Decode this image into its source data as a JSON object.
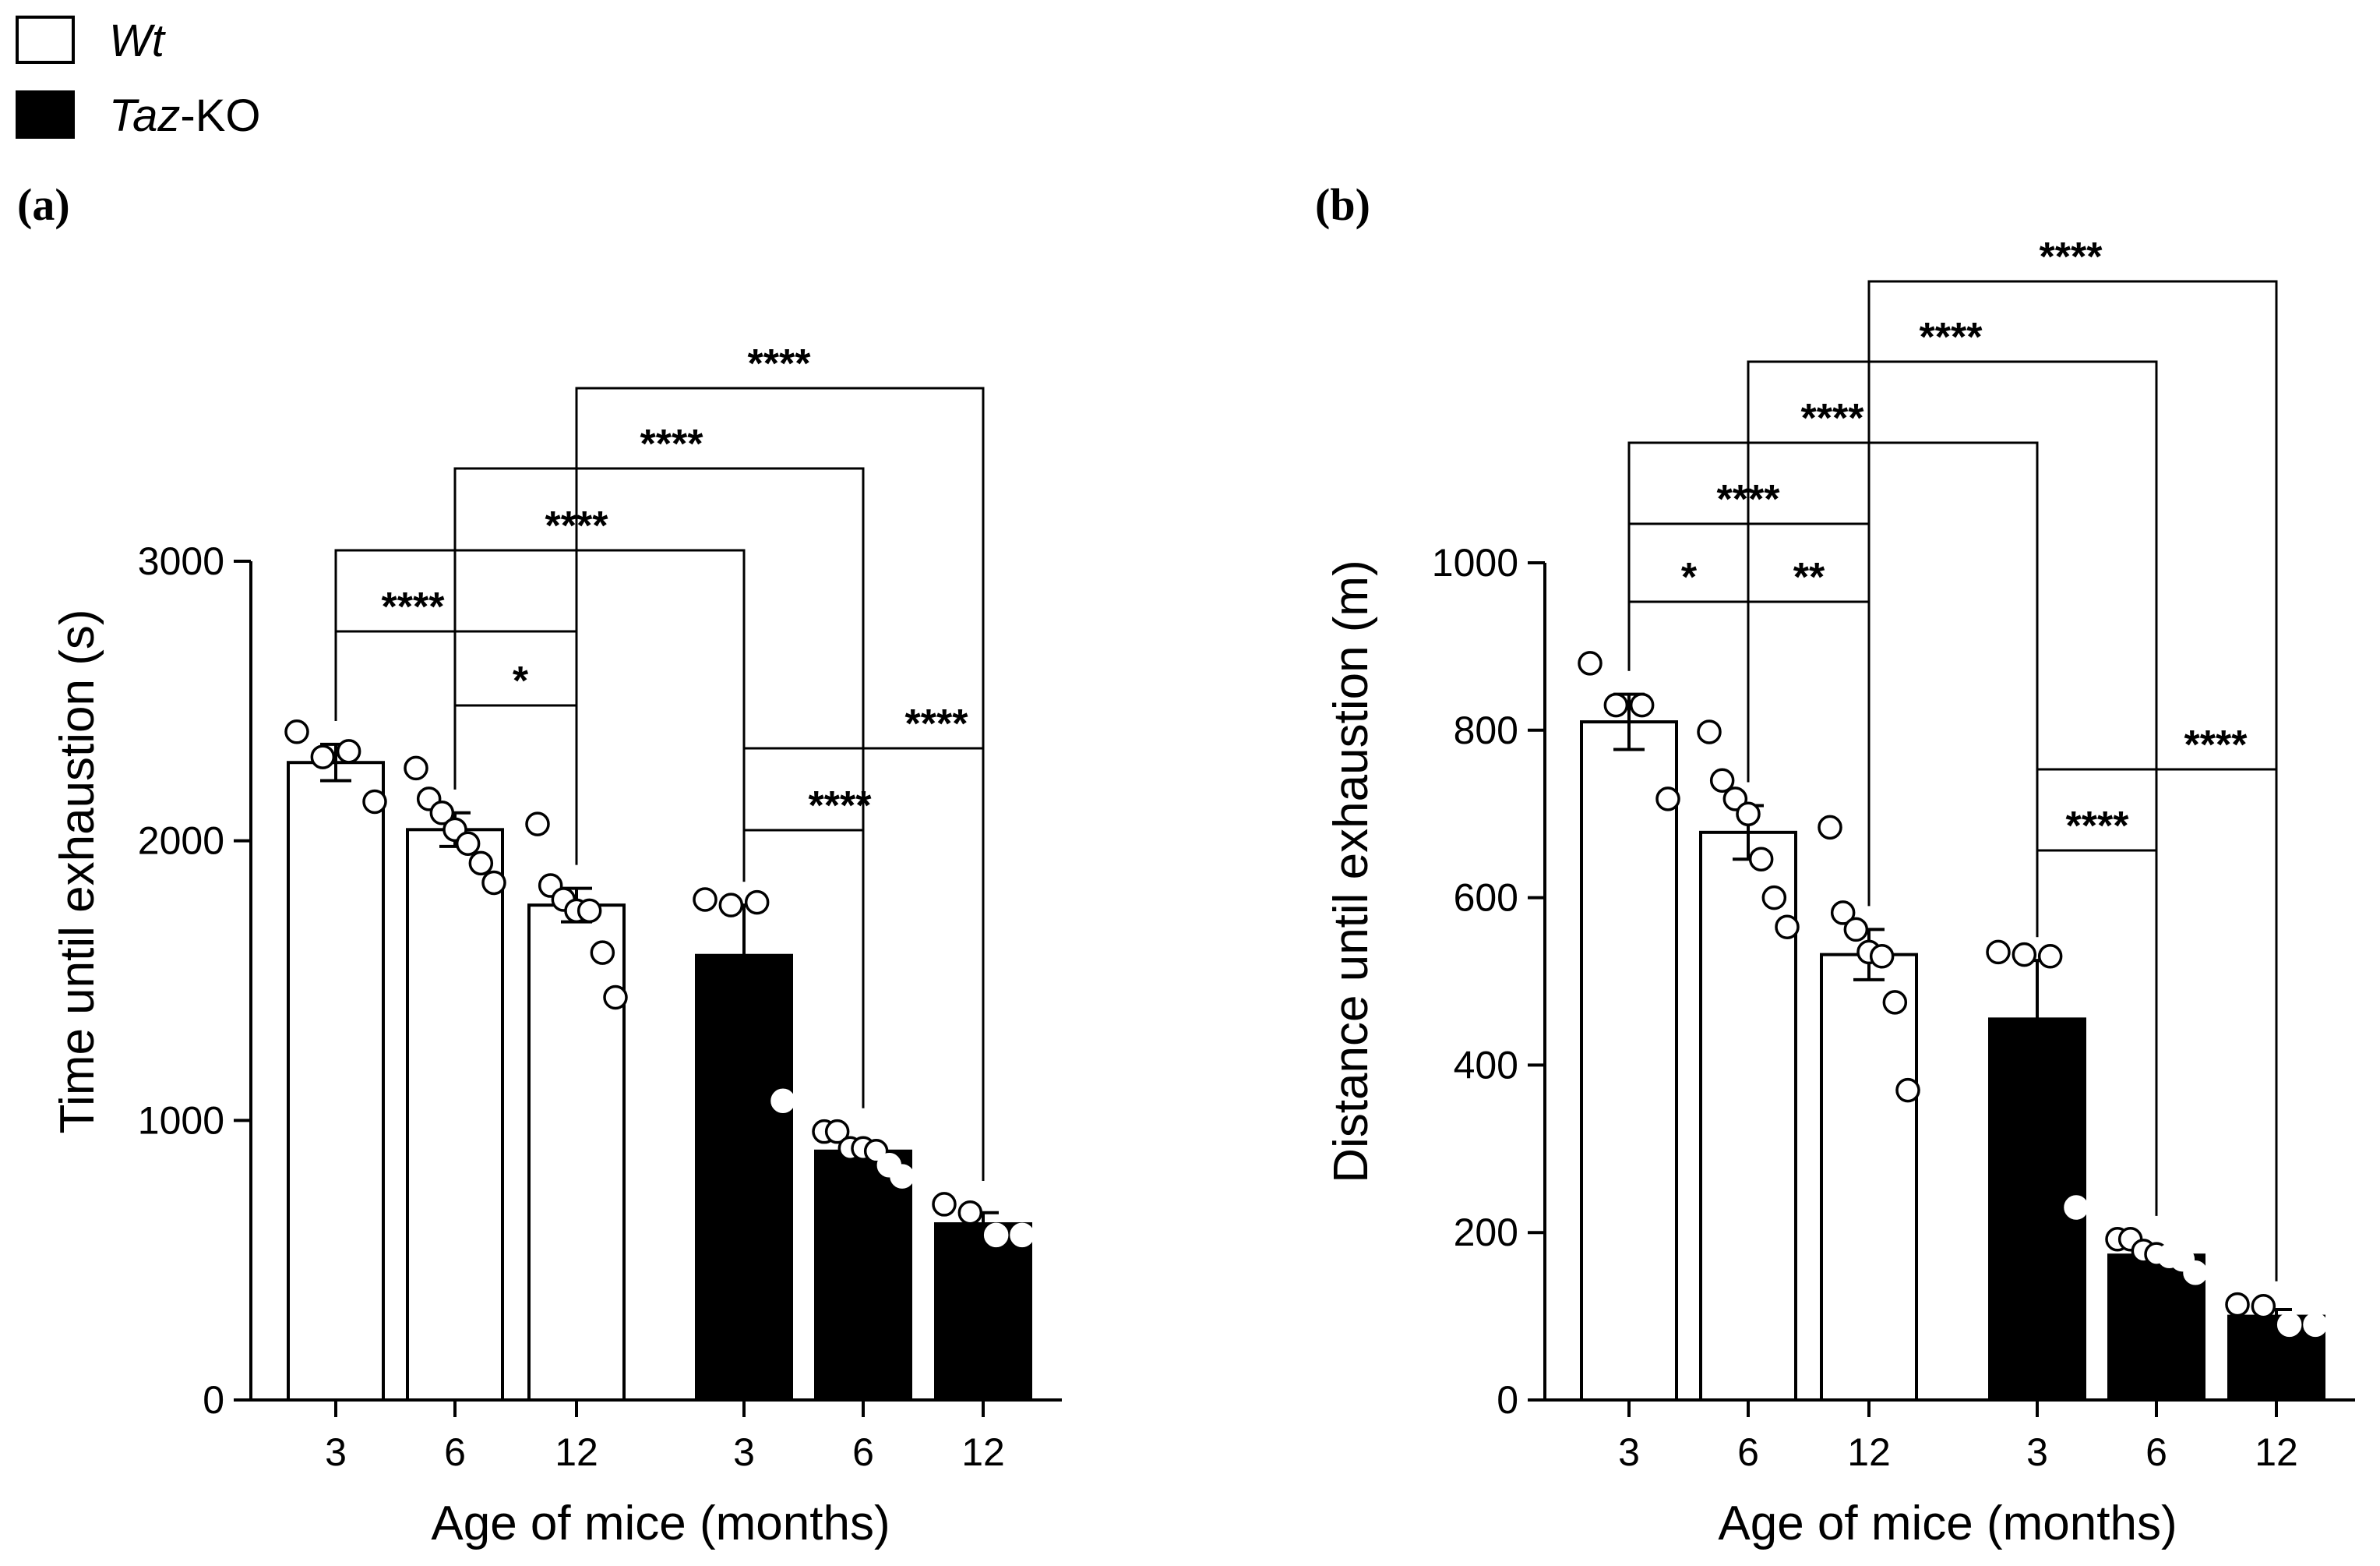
{
  "legend": [
    {
      "italic": "Wt",
      "rest": "",
      "color": "#ffffff"
    },
    {
      "italic": "Taz",
      "rest": "-KO",
      "color": "#000000"
    }
  ],
  "chart_data": [
    {
      "panel": "(a)",
      "type": "bar",
      "ylabel": "Time until exhaustion (s)",
      "xlabel": "Age of mice (months)",
      "ylim": [
        0,
        3000
      ],
      "yticks": [
        0,
        1000,
        2000,
        3000
      ],
      "categories": [
        "3",
        "6",
        "12",
        "3",
        "6",
        "12"
      ],
      "groups": [
        "Wt",
        "Wt",
        "Wt",
        "Taz-KO",
        "Taz-KO",
        "Taz-KO"
      ],
      "values": [
        2280,
        2040,
        1770,
        1590,
        890,
        630
      ],
      "sem": [
        65,
        60,
        60,
        180,
        30,
        40
      ],
      "points": [
        [
          2390,
          2300,
          2320,
          2140
        ],
        [
          2260,
          2150,
          2100,
          2040,
          1990,
          1920,
          1850
        ],
        [
          2060,
          1840,
          1790,
          1750,
          1750,
          1600,
          1440
        ],
        [
          1790,
          1770,
          1780,
          1070
        ],
        [
          960,
          960,
          900,
          900,
          890,
          840,
          800
        ],
        [
          700,
          670,
          590,
          590
        ]
      ],
      "comparisons": [
        {
          "from": 1,
          "to": 2,
          "label": "*"
        },
        {
          "from": 0,
          "to": 2,
          "label": "****"
        },
        {
          "from": 3,
          "to": 4,
          "label": "****"
        },
        {
          "from": 3,
          "to": 5,
          "label": "****"
        },
        {
          "from": 0,
          "to": 3,
          "label": "****"
        },
        {
          "from": 1,
          "to": 4,
          "label": "****"
        },
        {
          "from": 2,
          "to": 5,
          "label": "****"
        }
      ]
    },
    {
      "panel": "(b)",
      "type": "bar",
      "ylabel": "Distance until exhaustion (m)",
      "xlabel": "Age of mice (months)",
      "ylim": [
        0,
        1000
      ],
      "yticks": [
        0,
        200,
        400,
        600,
        800,
        1000
      ],
      "categories": [
        "3",
        "6",
        "12",
        "3",
        "6",
        "12"
      ],
      "groups": [
        "Wt",
        "Wt",
        "Wt",
        "Taz-KO",
        "Taz-KO",
        "Taz-KO"
      ],
      "values": [
        810,
        678,
        532,
        455,
        173,
        100
      ],
      "sem": [
        33,
        32,
        30,
        70,
        8,
        8
      ],
      "points": [
        [
          880,
          830,
          830,
          718
        ],
        [
          798,
          740,
          718,
          700,
          646,
          600,
          565
        ],
        [
          684,
          582,
          562,
          535,
          530,
          475,
          370
        ],
        [
          535,
          532,
          530,
          230
        ],
        [
          192,
          192,
          178,
          174,
          172,
          168,
          152
        ],
        [
          114,
          112,
          90,
          90
        ]
      ],
      "comparisons": [
        {
          "from": 0,
          "to": 1,
          "label": "*"
        },
        {
          "from": 1,
          "to": 2,
          "label": "**"
        },
        {
          "from": 3,
          "to": 4,
          "label": "****"
        },
        {
          "from": 3,
          "to": 5,
          "label": "****"
        },
        {
          "from": 0,
          "to": 2,
          "label": "****"
        },
        {
          "from": 0,
          "to": 3,
          "label": "****"
        },
        {
          "from": 1,
          "to": 4,
          "label": "****"
        },
        {
          "from": 2,
          "to": 5,
          "label": "****"
        }
      ]
    }
  ]
}
